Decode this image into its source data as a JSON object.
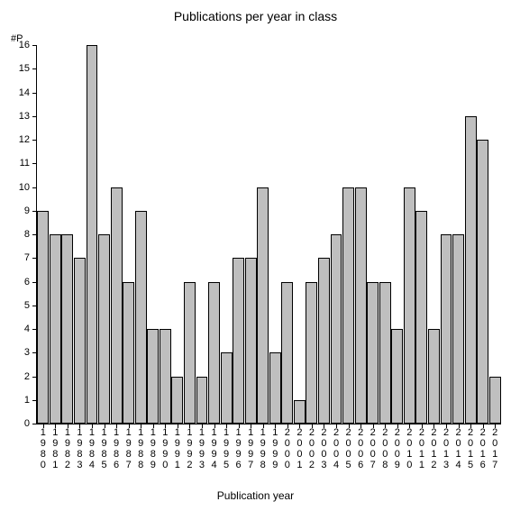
{
  "chart": {
    "type": "bar",
    "title": "Publications per year in class",
    "title_fontsize": 14,
    "y_axis_label": "#P",
    "x_axis_label": "Publication year",
    "label_fontsize": 12,
    "tick_fontsize": 11,
    "background_color": "#ffffff",
    "bar_fill_color": "#bfbfbf",
    "bar_border_color": "#000000",
    "axis_color": "#000000",
    "text_color": "#000000",
    "ylim": [
      0,
      16
    ],
    "ytick_step": 1,
    "bar_width_ratio": 0.95,
    "categories": [
      "1980",
      "1981",
      "1982",
      "1983",
      "1984",
      "1985",
      "1986",
      "1987",
      "1988",
      "1989",
      "1990",
      "1991",
      "1992",
      "1993",
      "1994",
      "1995",
      "1996",
      "1997",
      "1998",
      "1999",
      "2000",
      "2001",
      "2002",
      "2003",
      "2004",
      "2005",
      "2006",
      "2007",
      "2008",
      "2009",
      "2010",
      "2011",
      "2012",
      "2013",
      "2014",
      "2015",
      "2016",
      "2017"
    ],
    "values": [
      9,
      8,
      8,
      7,
      16,
      8,
      10,
      6,
      9,
      4,
      4,
      2,
      6,
      2,
      6,
      3,
      7,
      7,
      10,
      3,
      6,
      1,
      6,
      7,
      8,
      10,
      10,
      6,
      6,
      4,
      10,
      9,
      4,
      8,
      8,
      13,
      12,
      2
    ]
  }
}
